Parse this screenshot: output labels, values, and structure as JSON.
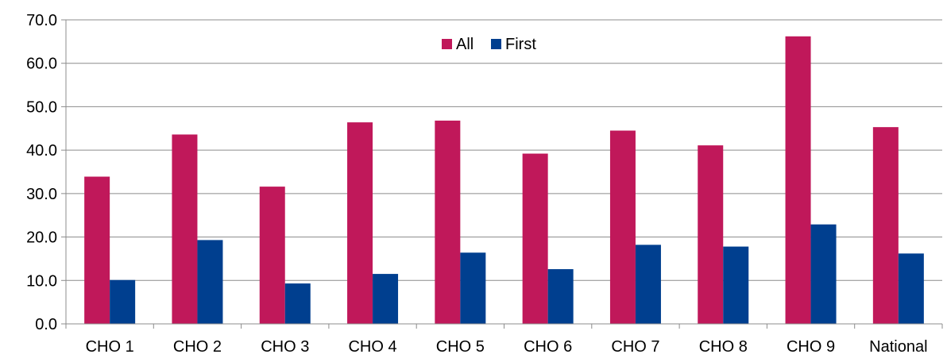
{
  "chart_data": {
    "type": "bar",
    "categories": [
      "CHO 1",
      "CHO 2",
      "CHO 3",
      "CHO 4",
      "CHO 5",
      "CHO 6",
      "CHO 7",
      "CHO 8",
      "CHO 9",
      "National"
    ],
    "series": [
      {
        "name": "All",
        "color": "#C0185A",
        "values": [
          33.9,
          43.6,
          31.6,
          46.4,
          46.8,
          39.2,
          44.5,
          41.1,
          66.2,
          45.3
        ]
      },
      {
        "name": "First",
        "color": "#003F8F",
        "values": [
          10.1,
          19.3,
          9.3,
          11.5,
          16.4,
          12.6,
          18.2,
          17.8,
          22.9,
          16.2
        ]
      }
    ],
    "y_ticks": [
      "0.0",
      "10.0",
      "20.0",
      "30.0",
      "40.0",
      "50.0",
      "60.0",
      "70.0"
    ],
    "ylim": [
      0,
      70
    ],
    "grid": true,
    "legend_position": "top-center"
  }
}
